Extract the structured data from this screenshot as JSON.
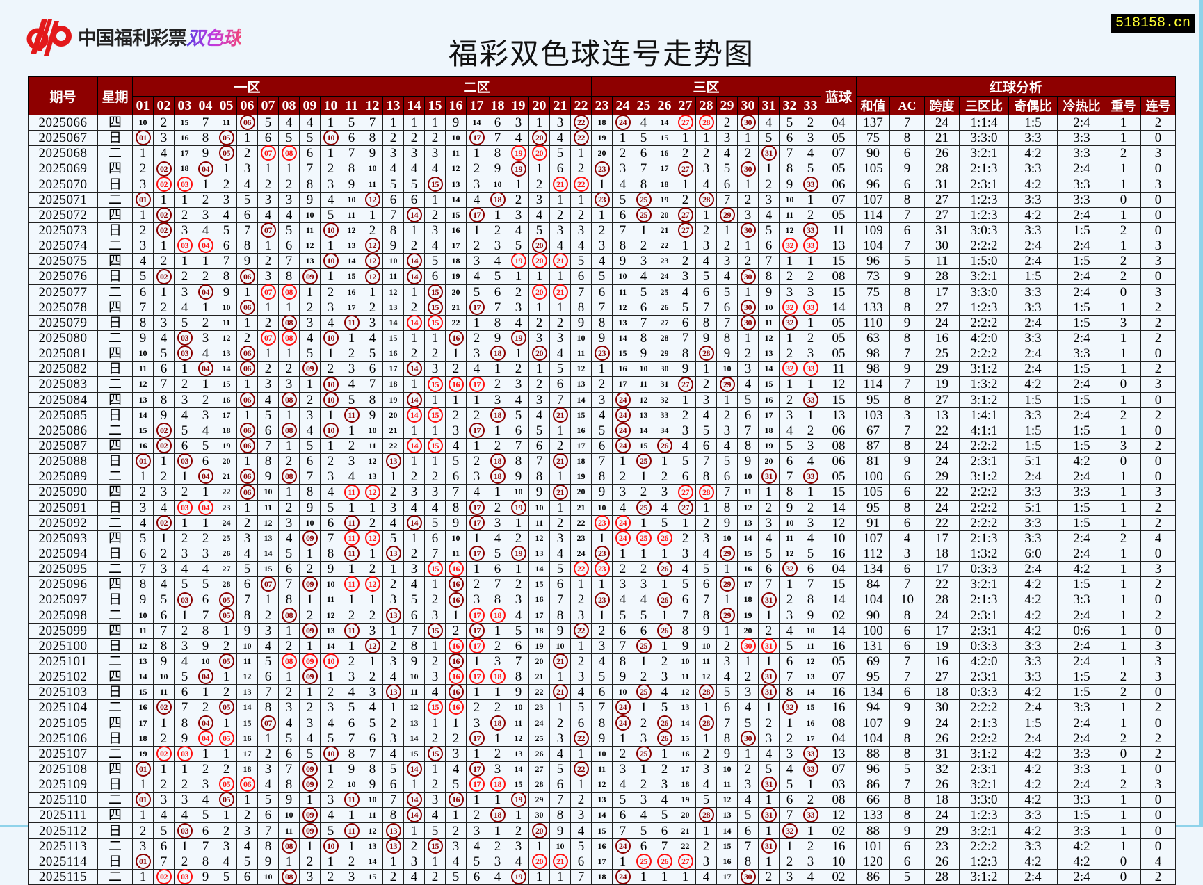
{
  "logo": {
    "text": "中国福利彩票",
    "highlight": "双色球",
    "mark": "cp"
  },
  "site_badge": "518158.cn",
  "title": "福彩双色球连号走势图",
  "colors": {
    "header_bg": "#8e0000",
    "hit_circle": "#8b0000",
    "consecutive_circle": "#ff1010",
    "badge_text": "#ffff33"
  },
  "header": {
    "period": "期号",
    "weekday": "星期",
    "zone1": "一区",
    "zone2": "二区",
    "zone3": "三区",
    "blue": "蓝球",
    "analysis": "红球分析",
    "red_columns": [
      "01",
      "02",
      "03",
      "04",
      "05",
      "06",
      "07",
      "08",
      "09",
      "10",
      "11",
      "12",
      "13",
      "14",
      "15",
      "16",
      "17",
      "18",
      "19",
      "20",
      "21",
      "22",
      "23",
      "24",
      "25",
      "26",
      "27",
      "28",
      "29",
      "30",
      "31",
      "32",
      "33"
    ],
    "stats": [
      "和值",
      "AC",
      "跨度",
      "三区比",
      "奇偶比",
      "冷热比",
      "重号",
      "连号"
    ]
  },
  "first_row_omissions": [
    10,
    2,
    15,
    7,
    11,
    0,
    5,
    4,
    4,
    1,
    5,
    7,
    1,
    1,
    1,
    9,
    14,
    6,
    3,
    1,
    3,
    0,
    18,
    0,
    4,
    14,
    0,
    0,
    2,
    0,
    4,
    5,
    2
  ],
  "rows": [
    {
      "period": "2025066",
      "weekday": "四",
      "red": [
        6,
        22,
        24,
        27,
        28,
        30
      ],
      "blue": "04",
      "sum": "137",
      "ac": "7",
      "span": "24",
      "zone_ratio": "1:1:4",
      "odd_even": "1:5",
      "hot_cold": "2:4",
      "repeat": "1",
      "consecutive": "2"
    },
    {
      "period": "2025067",
      "weekday": "日",
      "red": [
        1,
        5,
        10,
        17,
        20,
        22
      ],
      "blue": "05",
      "sum": "75",
      "ac": "8",
      "span": "21",
      "zone_ratio": "3:3:0",
      "odd_even": "3:3",
      "hot_cold": "3:3",
      "repeat": "1",
      "consecutive": "0"
    },
    {
      "period": "2025068",
      "weekday": "二",
      "red": [
        5,
        7,
        8,
        19,
        20,
        31
      ],
      "blue": "07",
      "sum": "90",
      "ac": "6",
      "span": "26",
      "zone_ratio": "3:2:1",
      "odd_even": "4:2",
      "hot_cold": "3:3",
      "repeat": "2",
      "consecutive": "3"
    },
    {
      "period": "2025069",
      "weekday": "四",
      "red": [
        2,
        4,
        19,
        23,
        27,
        30
      ],
      "blue": "05",
      "sum": "105",
      "ac": "9",
      "span": "28",
      "zone_ratio": "2:1:3",
      "odd_even": "3:3",
      "hot_cold": "2:4",
      "repeat": "1",
      "consecutive": "0"
    },
    {
      "period": "2025070",
      "weekday": "日",
      "red": [
        2,
        3,
        15,
        21,
        22,
        33
      ],
      "blue": "06",
      "sum": "96",
      "ac": "6",
      "span": "31",
      "zone_ratio": "2:3:1",
      "odd_even": "4:2",
      "hot_cold": "3:3",
      "repeat": "1",
      "consecutive": "3"
    },
    {
      "period": "2025071",
      "weekday": "二",
      "red": [
        1,
        12,
        18,
        23,
        25,
        28
      ],
      "blue": "07",
      "sum": "107",
      "ac": "8",
      "span": "27",
      "zone_ratio": "1:2:3",
      "odd_even": "3:3",
      "hot_cold": "3:3",
      "repeat": "0",
      "consecutive": "0"
    },
    {
      "period": "2025072",
      "weekday": "四",
      "red": [
        2,
        14,
        17,
        25,
        27,
        29
      ],
      "blue": "05",
      "sum": "114",
      "ac": "7",
      "span": "27",
      "zone_ratio": "1:2:3",
      "odd_even": "4:2",
      "hot_cold": "2:4",
      "repeat": "1",
      "consecutive": "0"
    },
    {
      "period": "2025073",
      "weekday": "日",
      "red": [
        2,
        7,
        10,
        27,
        30,
        33
      ],
      "blue": "11",
      "sum": "109",
      "ac": "6",
      "span": "31",
      "zone_ratio": "3:0:3",
      "odd_even": "3:3",
      "hot_cold": "1:5",
      "repeat": "2",
      "consecutive": "0"
    },
    {
      "period": "2025074",
      "weekday": "二",
      "red": [
        3,
        4,
        12,
        20,
        32,
        33
      ],
      "blue": "13",
      "sum": "104",
      "ac": "7",
      "span": "30",
      "zone_ratio": "2:2:2",
      "odd_even": "2:4",
      "hot_cold": "2:4",
      "repeat": "1",
      "consecutive": "3"
    },
    {
      "period": "2025075",
      "weekday": "四",
      "red": [
        10,
        12,
        14,
        19,
        20,
        21
      ],
      "blue": "15",
      "sum": "96",
      "ac": "5",
      "span": "11",
      "zone_ratio": "1:5:0",
      "odd_even": "2:4",
      "hot_cold": "1:5",
      "repeat": "2",
      "consecutive": "3"
    },
    {
      "period": "2025076",
      "weekday": "日",
      "red": [
        2,
        6,
        9,
        12,
        14,
        30
      ],
      "blue": "08",
      "sum": "73",
      "ac": "9",
      "span": "28",
      "zone_ratio": "3:2:1",
      "odd_even": "1:5",
      "hot_cold": "2:4",
      "repeat": "2",
      "consecutive": "0"
    },
    {
      "period": "2025077",
      "weekday": "二",
      "red": [
        4,
        7,
        8,
        15,
        20,
        21
      ],
      "blue": "15",
      "sum": "75",
      "ac": "8",
      "span": "17",
      "zone_ratio": "3:3:0",
      "odd_even": "3:3",
      "hot_cold": "2:4",
      "repeat": "0",
      "consecutive": "3"
    },
    {
      "period": "2025078",
      "weekday": "四",
      "red": [
        6,
        15,
        17,
        30,
        32,
        33
      ],
      "blue": "14",
      "sum": "133",
      "ac": "8",
      "span": "27",
      "zone_ratio": "1:2:3",
      "odd_even": "3:3",
      "hot_cold": "1:5",
      "repeat": "1",
      "consecutive": "2"
    },
    {
      "period": "2025079",
      "weekday": "日",
      "red": [
        8,
        11,
        14,
        15,
        30,
        32
      ],
      "blue": "05",
      "sum": "110",
      "ac": "9",
      "span": "24",
      "zone_ratio": "2:2:2",
      "odd_even": "2:4",
      "hot_cold": "1:5",
      "repeat": "3",
      "consecutive": "2"
    },
    {
      "period": "2025080",
      "weekday": "二",
      "red": [
        3,
        7,
        8,
        10,
        16,
        19
      ],
      "blue": "05",
      "sum": "63",
      "ac": "8",
      "span": "16",
      "zone_ratio": "4:2:0",
      "odd_even": "3:3",
      "hot_cold": "2:4",
      "repeat": "1",
      "consecutive": "2"
    },
    {
      "period": "2025081",
      "weekday": "四",
      "red": [
        3,
        6,
        18,
        20,
        23,
        28
      ],
      "blue": "05",
      "sum": "98",
      "ac": "7",
      "span": "25",
      "zone_ratio": "2:2:2",
      "odd_even": "2:4",
      "hot_cold": "3:3",
      "repeat": "1",
      "consecutive": "0"
    },
    {
      "period": "2025082",
      "weekday": "日",
      "red": [
        4,
        6,
        9,
        14,
        32,
        33
      ],
      "blue": "11",
      "sum": "98",
      "ac": "9",
      "span": "29",
      "zone_ratio": "3:1:2",
      "odd_even": "2:4",
      "hot_cold": "1:5",
      "repeat": "1",
      "consecutive": "2"
    },
    {
      "period": "2025083",
      "weekday": "二",
      "red": [
        10,
        15,
        16,
        17,
        27,
        29
      ],
      "blue": "12",
      "sum": "114",
      "ac": "7",
      "span": "19",
      "zone_ratio": "1:3:2",
      "odd_even": "4:2",
      "hot_cold": "2:4",
      "repeat": "0",
      "consecutive": "3"
    },
    {
      "period": "2025084",
      "weekday": "四",
      "red": [
        6,
        8,
        10,
        14,
        24,
        33
      ],
      "blue": "15",
      "sum": "95",
      "ac": "8",
      "span": "27",
      "zone_ratio": "3:1:2",
      "odd_even": "1:5",
      "hot_cold": "1:5",
      "repeat": "1",
      "consecutive": "0"
    },
    {
      "period": "2025085",
      "weekday": "日",
      "red": [
        11,
        14,
        15,
        18,
        21,
        24
      ],
      "blue": "13",
      "sum": "103",
      "ac": "3",
      "span": "13",
      "zone_ratio": "1:4:1",
      "odd_even": "3:3",
      "hot_cold": "2:4",
      "repeat": "2",
      "consecutive": "2"
    },
    {
      "period": "2025086",
      "weekday": "二",
      "red": [
        2,
        6,
        8,
        10,
        17,
        24
      ],
      "blue": "06",
      "sum": "67",
      "ac": "7",
      "span": "22",
      "zone_ratio": "4:1:1",
      "odd_even": "1:5",
      "hot_cold": "1:5",
      "repeat": "1",
      "consecutive": "0"
    },
    {
      "period": "2025087",
      "weekday": "四",
      "red": [
        2,
        6,
        14,
        15,
        24,
        26
      ],
      "blue": "08",
      "sum": "87",
      "ac": "8",
      "span": "24",
      "zone_ratio": "2:2:2",
      "odd_even": "1:5",
      "hot_cold": "1:5",
      "repeat": "3",
      "consecutive": "2"
    },
    {
      "period": "2025088",
      "weekday": "日",
      "red": [
        1,
        3,
        13,
        18,
        21,
        25
      ],
      "blue": "06",
      "sum": "81",
      "ac": "9",
      "span": "24",
      "zone_ratio": "2:3:1",
      "odd_even": "5:1",
      "hot_cold": "4:2",
      "repeat": "0",
      "consecutive": "0"
    },
    {
      "period": "2025089",
      "weekday": "二",
      "red": [
        4,
        6,
        8,
        18,
        31,
        33
      ],
      "blue": "05",
      "sum": "100",
      "ac": "6",
      "span": "29",
      "zone_ratio": "3:1:2",
      "odd_even": "2:4",
      "hot_cold": "2:4",
      "repeat": "1",
      "consecutive": "0"
    },
    {
      "period": "2025090",
      "weekday": "四",
      "red": [
        6,
        11,
        12,
        21,
        27,
        28
      ],
      "blue": "15",
      "sum": "105",
      "ac": "6",
      "span": "22",
      "zone_ratio": "2:2:2",
      "odd_even": "3:3",
      "hot_cold": "3:3",
      "repeat": "1",
      "consecutive": "3"
    },
    {
      "period": "2025091",
      "weekday": "日",
      "red": [
        3,
        4,
        17,
        19,
        25,
        27
      ],
      "blue": "14",
      "sum": "95",
      "ac": "8",
      "span": "24",
      "zone_ratio": "2:2:2",
      "odd_even": "5:1",
      "hot_cold": "1:5",
      "repeat": "1",
      "consecutive": "2"
    },
    {
      "period": "2025092",
      "weekday": "二",
      "red": [
        2,
        11,
        14,
        17,
        23,
        24
      ],
      "blue": "12",
      "sum": "91",
      "ac": "6",
      "span": "22",
      "zone_ratio": "2:2:2",
      "odd_even": "3:3",
      "hot_cold": "1:5",
      "repeat": "1",
      "consecutive": "2"
    },
    {
      "period": "2025093",
      "weekday": "四",
      "red": [
        9,
        11,
        12,
        24,
        25,
        26
      ],
      "blue": "10",
      "sum": "107",
      "ac": "4",
      "span": "17",
      "zone_ratio": "2:1:3",
      "odd_even": "3:3",
      "hot_cold": "2:4",
      "repeat": "2",
      "consecutive": "4"
    },
    {
      "period": "2025094",
      "weekday": "日",
      "red": [
        11,
        13,
        17,
        19,
        23,
        29
      ],
      "blue": "16",
      "sum": "112",
      "ac": "3",
      "span": "18",
      "zone_ratio": "1:3:2",
      "odd_even": "6:0",
      "hot_cold": "2:4",
      "repeat": "1",
      "consecutive": "0"
    },
    {
      "period": "2025095",
      "weekday": "二",
      "red": [
        15,
        16,
        22,
        23,
        26,
        32
      ],
      "blue": "04",
      "sum": "134",
      "ac": "6",
      "span": "17",
      "zone_ratio": "0:3:3",
      "odd_even": "2:4",
      "hot_cold": "4:2",
      "repeat": "1",
      "consecutive": "3"
    },
    {
      "period": "2025096",
      "weekday": "四",
      "red": [
        7,
        9,
        11,
        12,
        16,
        29
      ],
      "blue": "15",
      "sum": "84",
      "ac": "7",
      "span": "22",
      "zone_ratio": "3:2:1",
      "odd_even": "4:2",
      "hot_cold": "1:5",
      "repeat": "1",
      "consecutive": "2"
    },
    {
      "period": "2025097",
      "weekday": "日",
      "red": [
        3,
        5,
        16,
        23,
        26,
        31
      ],
      "blue": "14",
      "sum": "104",
      "ac": "10",
      "span": "28",
      "zone_ratio": "2:1:3",
      "odd_even": "4:2",
      "hot_cold": "3:3",
      "repeat": "1",
      "consecutive": "0"
    },
    {
      "period": "2025098",
      "weekday": "二",
      "red": [
        5,
        8,
        13,
        17,
        18,
        29
      ],
      "blue": "02",
      "sum": "90",
      "ac": "8",
      "span": "24",
      "zone_ratio": "2:3:1",
      "odd_even": "4:2",
      "hot_cold": "2:4",
      "repeat": "1",
      "consecutive": "2"
    },
    {
      "period": "2025099",
      "weekday": "四",
      "red": [
        9,
        11,
        15,
        17,
        22,
        26
      ],
      "blue": "14",
      "sum": "100",
      "ac": "6",
      "span": "17",
      "zone_ratio": "2:3:1",
      "odd_even": "4:2",
      "hot_cold": "0:6",
      "repeat": "1",
      "consecutive": "0"
    },
    {
      "period": "2025100",
      "weekday": "日",
      "red": [
        12,
        16,
        17,
        25,
        30,
        31
      ],
      "blue": "16",
      "sum": "131",
      "ac": "6",
      "span": "19",
      "zone_ratio": "0:3:3",
      "odd_even": "3:3",
      "hot_cold": "2:4",
      "repeat": "1",
      "consecutive": "3"
    },
    {
      "period": "2025101",
      "weekday": "二",
      "red": [
        5,
        8,
        9,
        10,
        16,
        21
      ],
      "blue": "05",
      "sum": "69",
      "ac": "7",
      "span": "16",
      "zone_ratio": "4:2:0",
      "odd_even": "3:3",
      "hot_cold": "2:4",
      "repeat": "1",
      "consecutive": "3"
    },
    {
      "period": "2025102",
      "weekday": "四",
      "red": [
        4,
        9,
        16,
        17,
        18,
        31
      ],
      "blue": "07",
      "sum": "95",
      "ac": "7",
      "span": "27",
      "zone_ratio": "2:3:1",
      "odd_even": "3:3",
      "hot_cold": "1:5",
      "repeat": "2",
      "consecutive": "3"
    },
    {
      "period": "2025103",
      "weekday": "日",
      "red": [
        13,
        16,
        21,
        25,
        28,
        31
      ],
      "blue": "16",
      "sum": "134",
      "ac": "6",
      "span": "18",
      "zone_ratio": "0:3:3",
      "odd_even": "4:2",
      "hot_cold": "1:5",
      "repeat": "2",
      "consecutive": "0"
    },
    {
      "period": "2025104",
      "weekday": "二",
      "red": [
        2,
        5,
        15,
        16,
        24,
        32
      ],
      "blue": "16",
      "sum": "94",
      "ac": "9",
      "span": "30",
      "zone_ratio": "2:2:2",
      "odd_even": "2:4",
      "hot_cold": "3:3",
      "repeat": "1",
      "consecutive": "2"
    },
    {
      "period": "2025105",
      "weekday": "四",
      "red": [
        4,
        7,
        18,
        24,
        26,
        28
      ],
      "blue": "08",
      "sum": "107",
      "ac": "9",
      "span": "24",
      "zone_ratio": "2:1:3",
      "odd_even": "1:5",
      "hot_cold": "2:4",
      "repeat": "1",
      "consecutive": "0"
    },
    {
      "period": "2025106",
      "weekday": "日",
      "red": [
        4,
        5,
        17,
        22,
        26,
        30
      ],
      "blue": "04",
      "sum": "104",
      "ac": "8",
      "span": "26",
      "zone_ratio": "2:2:2",
      "odd_even": "2:4",
      "hot_cold": "2:4",
      "repeat": "2",
      "consecutive": "2"
    },
    {
      "period": "2025107",
      "weekday": "二",
      "red": [
        2,
        3,
        10,
        15,
        25,
        33
      ],
      "blue": "13",
      "sum": "88",
      "ac": "8",
      "span": "31",
      "zone_ratio": "3:1:2",
      "odd_even": "4:2",
      "hot_cold": "3:3",
      "repeat": "0",
      "consecutive": "2"
    },
    {
      "period": "2025108",
      "weekday": "四",
      "red": [
        1,
        9,
        14,
        17,
        22,
        33
      ],
      "blue": "07",
      "sum": "96",
      "ac": "5",
      "span": "32",
      "zone_ratio": "2:3:1",
      "odd_even": "4:2",
      "hot_cold": "3:3",
      "repeat": "1",
      "consecutive": "0"
    },
    {
      "period": "2025109",
      "weekday": "日",
      "red": [
        5,
        6,
        9,
        17,
        18,
        31
      ],
      "blue": "03",
      "sum": "86",
      "ac": "7",
      "span": "26",
      "zone_ratio": "3:2:1",
      "odd_even": "4:2",
      "hot_cold": "2:4",
      "repeat": "2",
      "consecutive": "3"
    },
    {
      "period": "2025110",
      "weekday": "二",
      "red": [
        1,
        5,
        11,
        14,
        16,
        19
      ],
      "blue": "08",
      "sum": "66",
      "ac": "8",
      "span": "18",
      "zone_ratio": "3:3:0",
      "odd_even": "4:2",
      "hot_cold": "3:3",
      "repeat": "1",
      "consecutive": "0"
    },
    {
      "period": "2025111",
      "weekday": "四",
      "red": [
        9,
        14,
        18,
        28,
        31,
        33
      ],
      "blue": "12",
      "sum": "133",
      "ac": "8",
      "span": "24",
      "zone_ratio": "1:2:3",
      "odd_even": "3:3",
      "hot_cold": "1:5",
      "repeat": "1",
      "consecutive": "0"
    },
    {
      "period": "2025112",
      "weekday": "日",
      "red": [
        3,
        9,
        11,
        13,
        20,
        32
      ],
      "blue": "02",
      "sum": "88",
      "ac": "9",
      "span": "29",
      "zone_ratio": "3:2:1",
      "odd_even": "4:2",
      "hot_cold": "3:3",
      "repeat": "1",
      "consecutive": "0"
    },
    {
      "period": "2025113",
      "weekday": "二",
      "red": [
        8,
        10,
        13,
        15,
        24,
        31
      ],
      "blue": "16",
      "sum": "101",
      "ac": "6",
      "span": "23",
      "zone_ratio": "2:2:2",
      "odd_even": "3:3",
      "hot_cold": "4:2",
      "repeat": "1",
      "consecutive": "0"
    },
    {
      "period": "2025114",
      "weekday": "日",
      "red": [
        1,
        20,
        21,
        25,
        26,
        27
      ],
      "blue": "10",
      "sum": "120",
      "ac": "6",
      "span": "26",
      "zone_ratio": "1:2:3",
      "odd_even": "4:2",
      "hot_cold": "4:2",
      "repeat": "0",
      "consecutive": "4"
    },
    {
      "period": "2025115",
      "weekday": "二",
      "red": [
        2,
        3,
        8,
        19,
        24,
        30
      ],
      "blue": "02",
      "sum": "86",
      "ac": "5",
      "span": "28",
      "zone_ratio": "3:1:2",
      "odd_even": "2:4",
      "hot_cold": "2:4",
      "repeat": "0",
      "consecutive": "2"
    }
  ]
}
